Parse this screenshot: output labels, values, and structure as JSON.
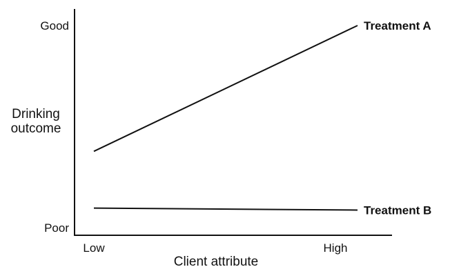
{
  "chart_data": {
    "type": "line",
    "x_categories": [
      "Low",
      "High"
    ],
    "y_categories": [
      "Poor",
      "Good"
    ],
    "xlabel": "Client attribute",
    "ylabel": [
      "Drinking",
      "outcome"
    ],
    "ylim": [
      0,
      1
    ],
    "grid": false,
    "series": [
      {
        "name": "Treatment A",
        "x": [
          0,
          1
        ],
        "y": [
          0.38,
          1.0
        ]
      },
      {
        "name": "Treatment B",
        "x": [
          0,
          1
        ],
        "y": [
          0.1,
          0.09
        ]
      }
    ]
  }
}
